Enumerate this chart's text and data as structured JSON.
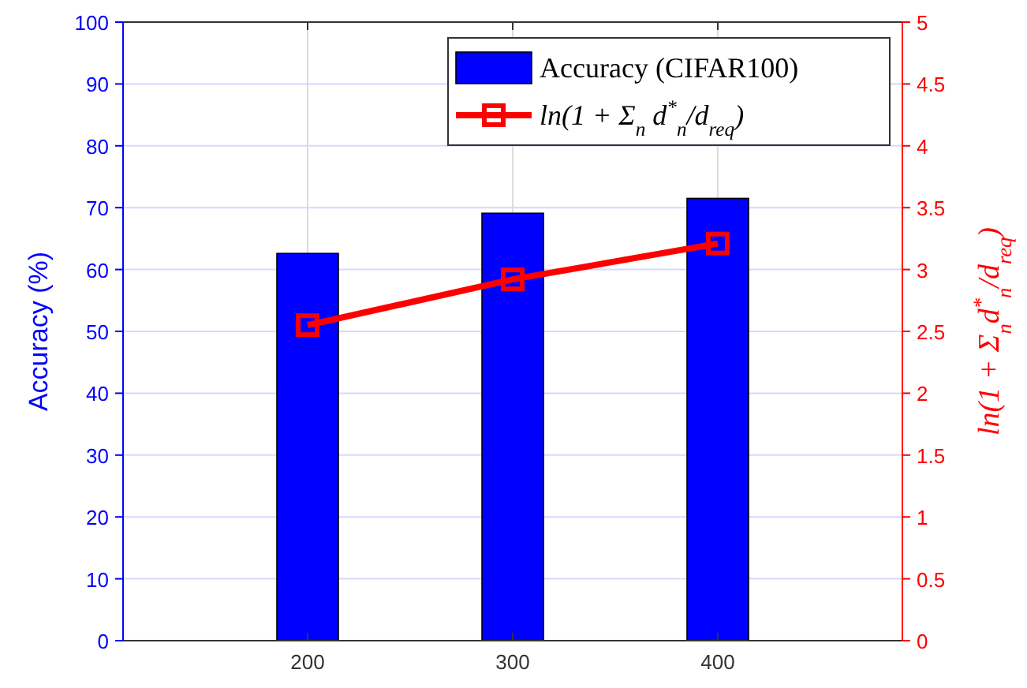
{
  "chart_data": {
    "type": "bar",
    "x": [
      200,
      300,
      400
    ],
    "xlim": [
      110,
      490
    ],
    "xticks": [
      200,
      300,
      400
    ],
    "ylabel": "Accuracy (%)",
    "y2label": "ln(1 + Σ$_{n}$d$^{*}$$_{n}$/d$_{req}$)",
    "ylim": [
      0,
      100
    ],
    "yticks": [
      0,
      10,
      20,
      30,
      40,
      50,
      60,
      70,
      80,
      90,
      100
    ],
    "y2lim": [
      0,
      5
    ],
    "y2ticks": [
      0,
      0.5,
      1,
      1.5,
      2,
      2.5,
      3,
      3.5,
      4,
      4.5,
      5
    ],
    "grid": true,
    "legend": "top right",
    "series": [
      {
        "name": "Accuracy (CIFAR100)",
        "color": "#0000ff",
        "values": [
          62.6,
          69.1,
          71.5
        ]
      },
      {
        "name": "ln(1 + Σ$_{n}$ d$^{*}$$_{n}$/d$_{req}$)",
        "type": "line",
        "axis": "y2",
        "color": "#ff0000",
        "marker": "square",
        "values": [
          2.55,
          2.92,
          3.21
        ]
      }
    ]
  }
}
